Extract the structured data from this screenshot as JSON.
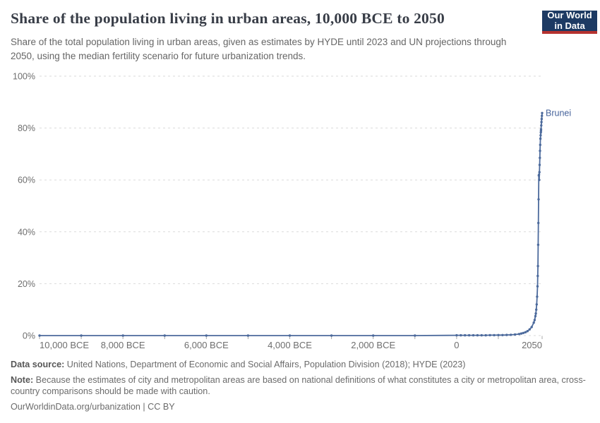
{
  "header": {
    "title": "Share of the population living in urban areas, 10,000 BCE to 2050",
    "logo": {
      "line1": "Our World",
      "line2": "in Data"
    },
    "subtitle": "Share of the total population living in urban areas, given as estimates by HYDE until 2023 and UN projections through 2050, using the median fertility scenario for future urbanization trends."
  },
  "chart_data": {
    "type": "line",
    "title": "Share of the population living in urban areas, 10,000 BCE to 2050",
    "xlabel": "",
    "ylabel": "",
    "xlim": [
      -10000,
      2050
    ],
    "ylim": [
      0,
      100
    ],
    "grid": "dashed-horizontal",
    "legend_position": "end-of-line-label",
    "y_ticks": [
      {
        "value": 0,
        "label": "0%"
      },
      {
        "value": 20,
        "label": "20%"
      },
      {
        "value": 40,
        "label": "40%"
      },
      {
        "value": 60,
        "label": "60%"
      },
      {
        "value": 80,
        "label": "80%"
      },
      {
        "value": 100,
        "label": "100%"
      }
    ],
    "x_axis": {
      "tick_years": [
        -10000,
        -9000,
        -8000,
        -7000,
        -6000,
        -5000,
        -4000,
        -3000,
        -2000,
        -1000,
        0,
        1000,
        2050
      ],
      "labels": [
        {
          "year": -10000,
          "text": "10,000 BCE",
          "anchor": "start"
        },
        {
          "year": -8000,
          "text": "8,000 BCE",
          "anchor": "middle"
        },
        {
          "year": -6000,
          "text": "6,000 BCE",
          "anchor": "middle"
        },
        {
          "year": -4000,
          "text": "4,000 BCE",
          "anchor": "middle"
        },
        {
          "year": -2000,
          "text": "2,000 BCE",
          "anchor": "middle"
        },
        {
          "year": 0,
          "text": "0",
          "anchor": "middle"
        },
        {
          "year": 2050,
          "text": "2050",
          "anchor": "end"
        }
      ]
    },
    "series": [
      {
        "name": "Brunei",
        "points": [
          [
            -10000,
            0
          ],
          [
            -9000,
            0
          ],
          [
            -8000,
            0
          ],
          [
            -7000,
            0
          ],
          [
            -6000,
            0
          ],
          [
            -5000,
            0
          ],
          [
            -4000,
            0
          ],
          [
            -3000,
            0
          ],
          [
            -2000,
            0
          ],
          [
            -1000,
            0
          ],
          [
            0,
            0.1
          ],
          [
            100,
            0.1
          ],
          [
            200,
            0.1
          ],
          [
            300,
            0.1
          ],
          [
            400,
            0.1
          ],
          [
            500,
            0.1
          ],
          [
            600,
            0.1
          ],
          [
            700,
            0.1
          ],
          [
            800,
            0.15
          ],
          [
            900,
            0.15
          ],
          [
            1000,
            0.2
          ],
          [
            1100,
            0.2
          ],
          [
            1200,
            0.25
          ],
          [
            1300,
            0.3
          ],
          [
            1400,
            0.4
          ],
          [
            1500,
            0.6
          ],
          [
            1550,
            0.8
          ],
          [
            1600,
            1.0
          ],
          [
            1650,
            1.3
          ],
          [
            1700,
            1.7
          ],
          [
            1750,
            2.4
          ],
          [
            1800,
            3.3
          ],
          [
            1850,
            5.0
          ],
          [
            1870,
            6.0
          ],
          [
            1890,
            7.5
          ],
          [
            1900,
            8.5
          ],
          [
            1910,
            10.0
          ],
          [
            1920,
            12.0
          ],
          [
            1930,
            15.0
          ],
          [
            1940,
            19.0
          ],
          [
            1945,
            23.0
          ],
          [
            1950,
            26.8
          ],
          [
            1955,
            35.0
          ],
          [
            1960,
            43.4
          ],
          [
            1965,
            52.5
          ],
          [
            1970,
            61.7
          ],
          [
            1975,
            62.0
          ],
          [
            1980,
            60.0
          ],
          [
            1985,
            63.0
          ],
          [
            1990,
            65.8
          ],
          [
            1995,
            68.5
          ],
          [
            2000,
            71.2
          ],
          [
            2005,
            73.5
          ],
          [
            2010,
            75.9
          ],
          [
            2015,
            77.2
          ],
          [
            2020,
            78.3
          ],
          [
            2023,
            78.9
          ],
          [
            2025,
            79.5
          ],
          [
            2030,
            81.0
          ],
          [
            2035,
            82.3
          ],
          [
            2040,
            83.5
          ],
          [
            2045,
            84.7
          ],
          [
            2050,
            85.8
          ]
        ]
      }
    ]
  },
  "colors": {
    "line": "#4c6a9c",
    "series_label": "#46639b",
    "grid": "#dadada",
    "tick": "#a8a8a8",
    "axis_text": "#6e6e6e",
    "logo_bg": "#1d3a63",
    "logo_accent": "#b5322f"
  },
  "footer": {
    "datasource_label": "Data source:",
    "datasource_text": " United Nations, Department of Economic and Social Affairs, Population Division (2018); HYDE (2023)",
    "note_label": "Note:",
    "note_text": " Because the estimates of city and metropolitan areas are based on national definitions of what constitutes a city or metropolitan area, cross-country comparisons should be made with caution.",
    "link": "OurWorldinData.org/urbanization | CC BY"
  }
}
